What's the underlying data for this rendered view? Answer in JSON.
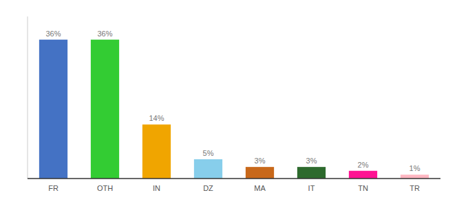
{
  "chart_data": {
    "type": "bar",
    "categories": [
      "FR",
      "OTH",
      "IN",
      "DZ",
      "MA",
      "IT",
      "TN",
      "TR"
    ],
    "values": [
      36,
      36,
      14,
      5,
      3,
      3,
      2,
      1
    ],
    "value_labels": [
      "36%",
      "36%",
      "14%",
      "5%",
      "3%",
      "3%",
      "2%",
      "1%"
    ],
    "colors": [
      "#4472c4",
      "#33cc33",
      "#f0a500",
      "#87ceeb",
      "#c8681a",
      "#2d6a2d",
      "#ff1493",
      "#ffb6c1"
    ],
    "ylim": [
      0,
      42
    ],
    "data_labels": true,
    "tick_labels": "x",
    "grid": false
  }
}
